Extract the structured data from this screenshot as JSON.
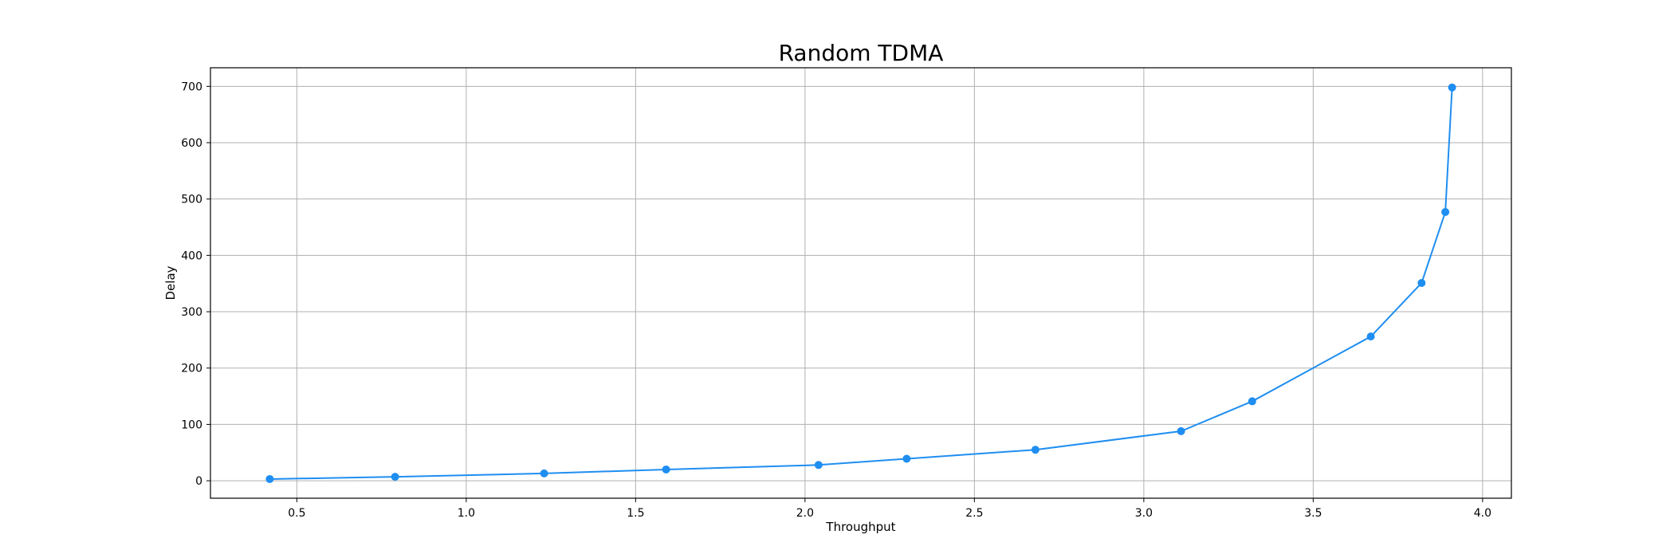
{
  "chart_data": {
    "type": "line",
    "title": "Random TDMA",
    "xlabel": "Throughput",
    "ylabel": "Delay",
    "xlim": [
      0.245,
      4.085
    ],
    "ylim": [
      -31,
      733
    ],
    "xticks": [
      0.5,
      1.0,
      1.5,
      2.0,
      2.5,
      3.0,
      3.5,
      4.0
    ],
    "xtick_labels": [
      "0.5",
      "1.0",
      "1.5",
      "2.0",
      "2.5",
      "3.0",
      "3.5",
      "4.0"
    ],
    "yticks": [
      0,
      100,
      200,
      300,
      400,
      500,
      600,
      700
    ],
    "ytick_labels": [
      "0",
      "100",
      "200",
      "300",
      "400",
      "500",
      "600",
      "700"
    ],
    "grid": true,
    "series": [
      {
        "color": "#1f8ef1",
        "marker": "circle",
        "x": [
          0.42,
          0.79,
          1.23,
          1.59,
          2.04,
          2.3,
          2.68,
          3.11,
          3.32,
          3.67,
          3.82,
          3.89,
          3.91
        ],
        "y": [
          3,
          7,
          13,
          20,
          28,
          39,
          55,
          88,
          141,
          256,
          351,
          477,
          698
        ]
      }
    ]
  }
}
